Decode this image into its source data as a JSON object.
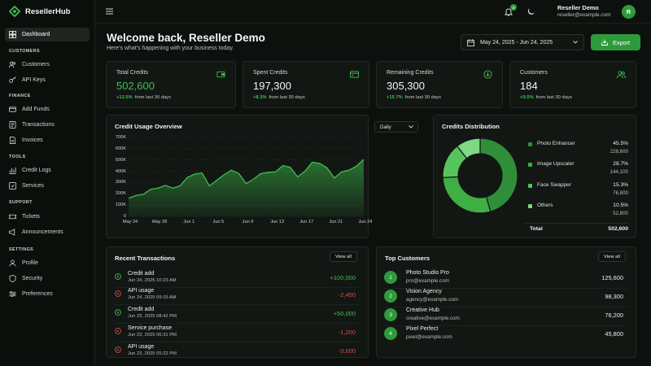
{
  "app": {
    "name": "ResellerHub"
  },
  "sidebar": {
    "dashboard": "Dashboard",
    "sections": [
      {
        "title": "CUSTOMERS",
        "items": [
          "Customers",
          "API Keys"
        ]
      },
      {
        "title": "FINANCE",
        "items": [
          "Add Funds",
          "Transactions",
          "Invoices"
        ]
      },
      {
        "title": "TOOLS",
        "items": [
          "Credit Logs",
          "Services"
        ]
      },
      {
        "title": "SUPPORT",
        "items": [
          "Tickets",
          "Announcements"
        ]
      },
      {
        "title": "SETTINGS",
        "items": [
          "Profile",
          "Security",
          "Preferences"
        ]
      }
    ]
  },
  "topbar": {
    "notification_count": "3",
    "user_name": "Reseller Demo",
    "user_email": "reseller@example.com",
    "avatar_initial": "R"
  },
  "header": {
    "title": "Welcome back, Reseller Demo",
    "subtitle": "Here's what's happening with your business today.",
    "date_range": "May 24, 2025 - Jun 24, 2025",
    "export_label": "Export"
  },
  "stats": [
    {
      "label": "Total Credits",
      "value": "502,600",
      "change": "+12.5%",
      "change_text": "from last 30 days",
      "icon": "wallet-icon"
    },
    {
      "label": "Spent Credits",
      "value": "197,300",
      "change": "+8.3%",
      "change_text": "from last 30 days",
      "icon": "card-icon"
    },
    {
      "label": "Remaining Credits",
      "value": "305,300",
      "change": "+15.7%",
      "change_text": "from last 30 days",
      "icon": "download-circle-icon"
    },
    {
      "label": "Customers",
      "value": "184",
      "change": "+9.5%",
      "change_text": "from last 30 days",
      "icon": "users-icon"
    }
  ],
  "usage_chart": {
    "title": "Credit Usage Overview",
    "period": "Daily"
  },
  "chart_data": [
    {
      "type": "area",
      "title": "Credit Usage Overview",
      "xlabel": "",
      "ylabel": "",
      "ylim": [
        0,
        700000
      ],
      "y_ticks": [
        "0",
        "100K",
        "200K",
        "300K",
        "400K",
        "500K",
        "600K",
        "700K"
      ],
      "categories": [
        "May 24",
        "May 28",
        "Jun 1",
        "Jun 5",
        "Jun 9",
        "Jun 13",
        "Jun 17",
        "Jun 21",
        "Jun 24"
      ],
      "x": [
        0,
        2,
        4,
        6,
        8,
        10,
        12,
        14,
        16,
        18,
        20,
        22,
        24,
        26,
        28,
        30,
        32,
        34,
        36,
        38,
        40,
        42,
        44,
        46,
        48,
        50,
        52,
        54,
        56,
        58,
        60,
        62,
        64
      ],
      "values": [
        160000,
        185000,
        195000,
        240000,
        250000,
        275000,
        250000,
        270000,
        345000,
        375000,
        385000,
        270000,
        320000,
        370000,
        410000,
        380000,
        290000,
        330000,
        380000,
        390000,
        395000,
        450000,
        435000,
        350000,
        400000,
        480000,
        470000,
        430000,
        340000,
        395000,
        410000,
        445000,
        505000
      ],
      "x_tick_positions": [
        0,
        8,
        16,
        24,
        32,
        40,
        48,
        56,
        64
      ],
      "grid": true,
      "color": "#3fbf4b"
    },
    {
      "type": "pie",
      "title": "Credits Distribution",
      "labels": [
        "Photo Enhancer",
        "Image Upscaler",
        "Face Swapper",
        "Others"
      ],
      "values": [
        228600,
        144100,
        76800,
        52800
      ],
      "percents": [
        "45.5%",
        "28.7%",
        "15.3%",
        "10.5%"
      ],
      "value_labels": [
        "228,600",
        "144,100",
        "76,800",
        "52,800"
      ],
      "colors": [
        "#2f8f38",
        "#3fae45",
        "#56c45c",
        "#7fd983"
      ],
      "total_label": "Total",
      "total_value": "502,600"
    }
  ],
  "transactions": {
    "title": "Recent Transactions",
    "view_all": "View all",
    "rows": [
      {
        "name": "Credit add",
        "date": "Jun 24, 2025 10:23 AM",
        "amount": "+100,000",
        "type": "pos"
      },
      {
        "name": "API usage",
        "date": "Jun 24, 2025 09:15 AM",
        "amount": "-2,450",
        "type": "neg"
      },
      {
        "name": "Credit add",
        "date": "Jun 23, 2025 08:42 PM",
        "amount": "+50,000",
        "type": "pos"
      },
      {
        "name": "Service purchase",
        "date": "Jun 23, 2025 06:31 PM",
        "amount": "-1,200",
        "type": "neg"
      },
      {
        "name": "API usage",
        "date": "Jun 23, 2025 05:22 PM",
        "amount": "-3,600",
        "type": "neg"
      }
    ]
  },
  "customers": {
    "title": "Top Customers",
    "view_all": "View all",
    "rows": [
      {
        "rank": "1",
        "name": "Photo Studio Pro",
        "email": "pro@example.com",
        "value": "125,600"
      },
      {
        "rank": "2",
        "name": "Vision Agency",
        "email": "agency@example.com",
        "value": "98,300"
      },
      {
        "rank": "3",
        "name": "Creative Hub",
        "email": "creative@example.com",
        "value": "76,200"
      },
      {
        "rank": "4",
        "name": "Pixel Perfect",
        "email": "pixel@example.com",
        "value": "45,800"
      }
    ]
  }
}
